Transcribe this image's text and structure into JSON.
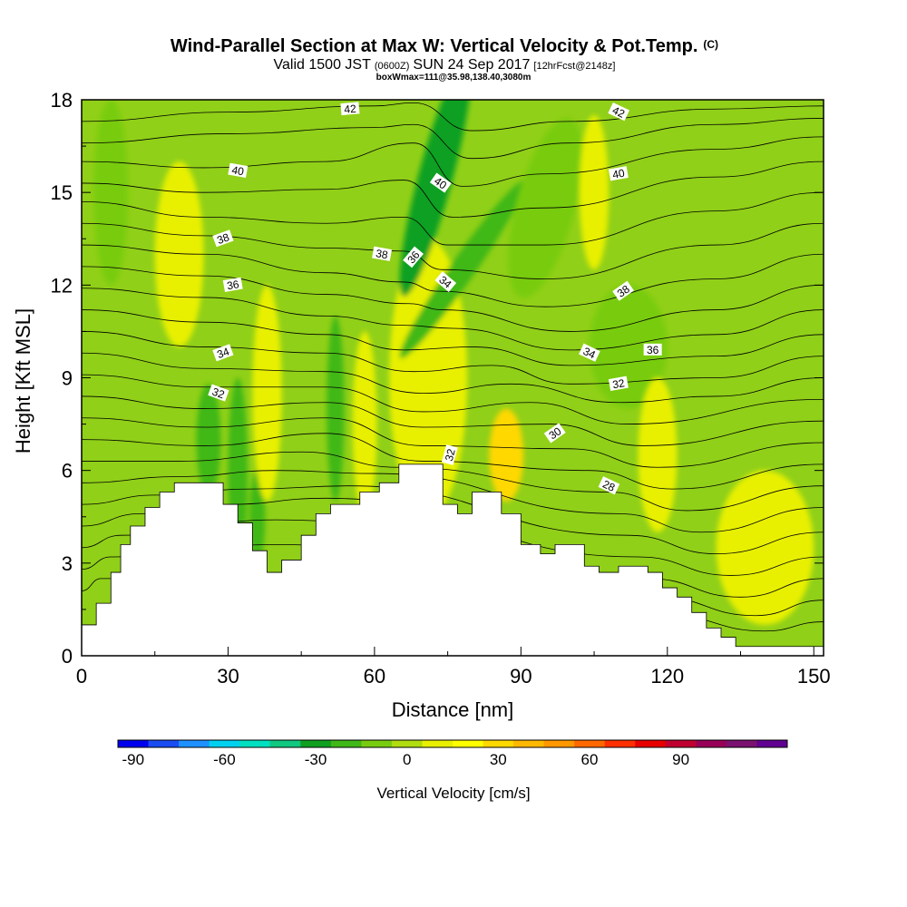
{
  "chart_data": {
    "type": "heatmap",
    "title": "Wind-Parallel Section at Max W: Vertical Velocity & Pot.Temp.",
    "title_mark": "(C)",
    "subtitle_parts": [
      "Valid 1500 JST",
      "(0600Z)",
      "SUN 24 Sep 2017",
      "[12hrFcst@2148z]"
    ],
    "info_line": "boxWmax=111@35.98,138.40,3080m",
    "xlabel": "Distance [nm]",
    "ylabel": "Height [Kft MSL]",
    "xlim": [
      0,
      152
    ],
    "ylim": [
      0,
      18
    ],
    "x_ticks": [
      {
        "value": 0,
        "label": "0"
      },
      {
        "value": 30,
        "label": "30"
      },
      {
        "value": 60,
        "label": "60"
      },
      {
        "value": 90,
        "label": "90"
      },
      {
        "value": 120,
        "label": "120"
      },
      {
        "value": 150,
        "label": "150"
      }
    ],
    "y_ticks": [
      {
        "value": 0,
        "label": "0"
      },
      {
        "value": 3,
        "label": "3"
      },
      {
        "value": 6,
        "label": "6"
      },
      {
        "value": 9,
        "label": "9"
      },
      {
        "value": 12,
        "label": "12"
      },
      {
        "value": 15,
        "label": "15"
      },
      {
        "value": 18,
        "label": "18"
      }
    ],
    "colorbar": {
      "label": "Vertical Velocity [cm/s]",
      "min": -95,
      "step": 10,
      "colors": [
        "#0000ee",
        "#1a4cf2",
        "#1e90ff",
        "#00d0f0",
        "#00e0c0",
        "#10c880",
        "#0fa020",
        "#40b818",
        "#78cc10",
        "#b0dc10",
        "#e8f000",
        "#ffff00",
        "#ffd800",
        "#ffb800",
        "#ff9800",
        "#ff6800",
        "#ff3000",
        "#e80000",
        "#c00030",
        "#980058",
        "#7a1070",
        "#600090"
      ],
      "tick_labels": [
        {
          "value": -90,
          "label": "-90"
        },
        {
          "value": -60,
          "label": "-60"
        },
        {
          "value": -30,
          "label": "-30"
        },
        {
          "value": 0,
          "label": "0"
        },
        {
          "value": 30,
          "label": "30"
        },
        {
          "value": 60,
          "label": "60"
        },
        {
          "value": 90,
          "label": "90"
        }
      ]
    },
    "terrain": [
      [
        0,
        1.0
      ],
      [
        3,
        1.0
      ],
      [
        3,
        1.7
      ],
      [
        6,
        1.7
      ],
      [
        6,
        2.7
      ],
      [
        8,
        2.7
      ],
      [
        8,
        3.6
      ],
      [
        10,
        3.6
      ],
      [
        10,
        4.2
      ],
      [
        13,
        4.2
      ],
      [
        13,
        4.8
      ],
      [
        16,
        4.8
      ],
      [
        16,
        5.3
      ],
      [
        19,
        5.3
      ],
      [
        19,
        5.6
      ],
      [
        29,
        5.6
      ],
      [
        29,
        4.9
      ],
      [
        32,
        4.9
      ],
      [
        32,
        4.3
      ],
      [
        35,
        4.3
      ],
      [
        35,
        3.4
      ],
      [
        38,
        3.4
      ],
      [
        38,
        2.7
      ],
      [
        41,
        2.7
      ],
      [
        41,
        3.1
      ],
      [
        45,
        3.1
      ],
      [
        45,
        3.9
      ],
      [
        48,
        3.9
      ],
      [
        48,
        4.6
      ],
      [
        51,
        4.6
      ],
      [
        51,
        4.9
      ],
      [
        57,
        4.9
      ],
      [
        57,
        5.3
      ],
      [
        61,
        5.3
      ],
      [
        61,
        5.6
      ],
      [
        65,
        5.6
      ],
      [
        65,
        6.2
      ],
      [
        74,
        6.2
      ],
      [
        74,
        4.9
      ],
      [
        77,
        4.9
      ],
      [
        77,
        4.6
      ],
      [
        80,
        4.6
      ],
      [
        80,
        5.3
      ],
      [
        86,
        5.3
      ],
      [
        86,
        4.6
      ],
      [
        90,
        4.6
      ],
      [
        90,
        3.6
      ],
      [
        94,
        3.6
      ],
      [
        94,
        3.3
      ],
      [
        97,
        3.3
      ],
      [
        97,
        3.6
      ],
      [
        103,
        3.6
      ],
      [
        103,
        2.9
      ],
      [
        106,
        2.9
      ],
      [
        106,
        2.7
      ],
      [
        110,
        2.7
      ],
      [
        110,
        2.9
      ],
      [
        116,
        2.9
      ],
      [
        116,
        2.7
      ],
      [
        119,
        2.7
      ],
      [
        119,
        2.2
      ],
      [
        122,
        2.2
      ],
      [
        122,
        1.9
      ],
      [
        125,
        1.9
      ],
      [
        125,
        1.4
      ],
      [
        128,
        1.4
      ],
      [
        128,
        0.9
      ],
      [
        131,
        0.9
      ],
      [
        131,
        0.6
      ],
      [
        134,
        0.6
      ],
      [
        134,
        0.3
      ],
      [
        152,
        0.3
      ]
    ],
    "w_features": [
      {
        "x": 71.5,
        "y": 9.6,
        "rx": 1.8,
        "ry": 2.3,
        "value": 100,
        "rot": 0
      },
      {
        "x": 71.5,
        "y": 9.5,
        "rx": 4.5,
        "ry": 3.5,
        "value": 45,
        "rot": 0
      },
      {
        "x": 71.0,
        "y": 9.0,
        "rx": 8.0,
        "ry": 4.5,
        "value": 12,
        "rot": 0
      },
      {
        "x": 72.5,
        "y": 15.5,
        "rx": 3.5,
        "ry": 4.0,
        "value": -35,
        "rot": 15
      },
      {
        "x": 78.0,
        "y": 12.5,
        "rx": 2.5,
        "ry": 3.5,
        "value": -25,
        "rot": 35
      },
      {
        "x": 95.0,
        "y": 14.5,
        "rx": 6.0,
        "ry": 3.0,
        "value": -15,
        "rot": 15
      },
      {
        "x": 6.0,
        "y": 15.0,
        "rx": 3.5,
        "ry": 3.0,
        "value": -15,
        "rot": 0
      },
      {
        "x": 26.0,
        "y": 7.0,
        "rx": 2.5,
        "ry": 1.8,
        "value": -20,
        "rot": 0
      },
      {
        "x": 32.0,
        "y": 6.0,
        "rx": 2.0,
        "ry": 3.0,
        "value": -22,
        "rot": 0
      },
      {
        "x": 36.0,
        "y": 4.5,
        "rx": 1.6,
        "ry": 1.5,
        "value": -20,
        "rot": 0
      },
      {
        "x": 52.0,
        "y": 8.0,
        "rx": 1.8,
        "ry": 3.0,
        "value": -20,
        "rot": 0
      },
      {
        "x": 87.0,
        "y": 6.5,
        "rx": 3.5,
        "ry": 1.5,
        "value": 25,
        "rot": 0
      },
      {
        "x": 58.0,
        "y": 7.5,
        "rx": 2.5,
        "ry": 3.0,
        "value": 10,
        "rot": 0
      },
      {
        "x": 38.0,
        "y": 8.5,
        "rx": 3.0,
        "ry": 3.5,
        "value": 8,
        "rot": 0
      },
      {
        "x": 105.0,
        "y": 15.0,
        "rx": 3.0,
        "ry": 2.5,
        "value": 10,
        "rot": 0
      },
      {
        "x": 112.0,
        "y": 10.0,
        "rx": 8.0,
        "ry": 2.0,
        "value": -12,
        "rot": 0
      },
      {
        "x": 140.0,
        "y": 3.5,
        "rx": 10.0,
        "ry": 2.5,
        "value": 5,
        "rot": 0
      },
      {
        "x": 20.0,
        "y": 13.0,
        "rx": 5.0,
        "ry": 3.0,
        "value": 6,
        "rot": 0
      },
      {
        "x": 118.0,
        "y": 6.5,
        "rx": 4.0,
        "ry": 2.5,
        "value": 5,
        "rot": 0
      }
    ],
    "isentropes": [
      [
        [
          0,
          17.3
        ],
        [
          30,
          17.6
        ],
        [
          60,
          17.8
        ],
        [
          68,
          17.9
        ],
        [
          80,
          17.0
        ],
        [
          100,
          17.3
        ],
        [
          130,
          17.7
        ],
        [
          152,
          17.8
        ]
      ],
      [
        [
          0,
          16.6
        ],
        [
          30,
          16.9
        ],
        [
          60,
          17.1
        ],
        [
          68,
          17.2
        ],
        [
          80,
          16.1
        ],
        [
          100,
          16.6
        ],
        [
          130,
          17.2
        ],
        [
          152,
          17.4
        ]
      ],
      [
        [
          0,
          16.0
        ],
        [
          25,
          15.8
        ],
        [
          50,
          16.0
        ],
        [
          68,
          16.6
        ],
        [
          78,
          15.2
        ],
        [
          95,
          15.6
        ],
        [
          130,
          16.4
        ],
        [
          152,
          16.8
        ]
      ],
      [
        [
          0,
          15.3
        ],
        [
          25,
          15.0
        ],
        [
          50,
          15.1
        ],
        [
          66,
          15.4
        ],
        [
          76,
          14.2
        ],
        [
          95,
          14.5
        ],
        [
          130,
          15.5
        ],
        [
          152,
          16.0
        ]
      ],
      [
        [
          0,
          14.7
        ],
        [
          25,
          14.2
        ],
        [
          50,
          14.0
        ],
        [
          66,
          14.2
        ],
        [
          75,
          13.3
        ],
        [
          95,
          13.3
        ],
        [
          130,
          14.4
        ],
        [
          152,
          15.0
        ]
      ],
      [
        [
          0,
          14.0
        ],
        [
          25,
          13.6
        ],
        [
          50,
          13.2
        ],
        [
          66,
          13.1
        ],
        [
          74,
          12.5
        ],
        [
          95,
          12.2
        ],
        [
          130,
          13.3
        ],
        [
          152,
          14.0
        ]
      ],
      [
        [
          0,
          13.3
        ],
        [
          25,
          13.0
        ],
        [
          50,
          12.4
        ],
        [
          66,
          12.1
        ],
        [
          73,
          11.8
        ],
        [
          95,
          11.3
        ],
        [
          130,
          12.2
        ],
        [
          152,
          13.0
        ]
      ],
      [
        [
          0,
          12.6
        ],
        [
          25,
          12.3
        ],
        [
          50,
          11.7
        ],
        [
          67,
          11.4
        ],
        [
          74,
          11.2
        ],
        [
          100,
          10.5
        ],
        [
          130,
          11.2
        ],
        [
          152,
          12.0
        ]
      ],
      [
        [
          0,
          11.9
        ],
        [
          25,
          11.6
        ],
        [
          50,
          11.0
        ],
        [
          66,
          10.7
        ],
        [
          76,
          10.6
        ],
        [
          100,
          9.9
        ],
        [
          130,
          10.4
        ],
        [
          152,
          11.2
        ]
      ],
      [
        [
          0,
          11.2
        ],
        [
          25,
          10.8
        ],
        [
          50,
          10.4
        ],
        [
          66,
          9.9
        ],
        [
          80,
          10.0
        ],
        [
          100,
          9.4
        ],
        [
          130,
          9.7
        ],
        [
          152,
          10.4
        ]
      ],
      [
        [
          0,
          10.5
        ],
        [
          25,
          10.0
        ],
        [
          50,
          9.8
        ],
        [
          68,
          9.2
        ],
        [
          84,
          9.4
        ],
        [
          100,
          8.8
        ],
        [
          130,
          9.0
        ],
        [
          152,
          9.7
        ]
      ],
      [
        [
          0,
          9.8
        ],
        [
          25,
          9.3
        ],
        [
          50,
          9.2
        ],
        [
          70,
          8.5
        ],
        [
          88,
          8.8
        ],
        [
          110,
          8.2
        ],
        [
          130,
          8.4
        ],
        [
          152,
          9.0
        ]
      ],
      [
        [
          0,
          9.1
        ],
        [
          25,
          8.7
        ],
        [
          50,
          8.7
        ],
        [
          70,
          7.9
        ],
        [
          92,
          8.2
        ],
        [
          112,
          7.5
        ],
        [
          152,
          8.3
        ]
      ],
      [
        [
          0,
          8.4
        ],
        [
          25,
          8.0
        ],
        [
          50,
          8.2
        ],
        [
          70,
          7.4
        ],
        [
          96,
          7.5
        ],
        [
          115,
          6.8
        ],
        [
          152,
          7.6
        ]
      ],
      [
        [
          0,
          7.7
        ],
        [
          25,
          7.4
        ],
        [
          50,
          7.7
        ],
        [
          70,
          6.8
        ],
        [
          100,
          6.7
        ],
        [
          118,
          6.1
        ],
        [
          152,
          6.9
        ]
      ],
      [
        [
          0,
          7.0
        ],
        [
          25,
          6.8
        ],
        [
          50,
          7.2
        ],
        [
          70,
          6.3
        ],
        [
          104,
          6.0
        ],
        [
          121,
          5.4
        ],
        [
          152,
          6.2
        ]
      ],
      [
        [
          0,
          6.3
        ],
        [
          20,
          6.3
        ],
        [
          45,
          6.6
        ],
        [
          65,
          6.1
        ],
        [
          108,
          5.3
        ],
        [
          124,
          4.7
        ],
        [
          152,
          5.5
        ]
      ],
      [
        [
          0,
          5.6
        ],
        [
          20,
          5.8
        ],
        [
          40,
          6.0
        ],
        [
          60,
          5.9
        ],
        [
          110,
          4.6
        ],
        [
          127,
          4.0
        ],
        [
          152,
          4.8
        ]
      ],
      [
        [
          0,
          4.9
        ],
        [
          15,
          5.2
        ],
        [
          35,
          5.4
        ],
        [
          55,
          5.5
        ],
        [
          112,
          3.9
        ],
        [
          130,
          3.3
        ],
        [
          152,
          4.0
        ]
      ],
      [
        [
          0,
          4.2
        ],
        [
          12,
          4.6
        ],
        [
          30,
          4.9
        ],
        [
          50,
          5.1
        ],
        [
          114,
          3.2
        ],
        [
          133,
          2.6
        ],
        [
          152,
          3.2
        ]
      ],
      [
        [
          0,
          3.5
        ],
        [
          8,
          3.9
        ],
        [
          40,
          4.4
        ],
        [
          116,
          2.5
        ],
        [
          135,
          1.9
        ],
        [
          152,
          2.5
        ]
      ],
      [
        [
          0,
          2.8
        ],
        [
          6,
          3.2
        ],
        [
          40,
          3.6
        ],
        [
          118,
          1.9
        ],
        [
          138,
          1.3
        ],
        [
          152,
          1.8
        ]
      ],
      [
        [
          0,
          2.1
        ],
        [
          4,
          2.5
        ],
        [
          120,
          1.3
        ],
        [
          140,
          0.8
        ],
        [
          152,
          1.1
        ]
      ]
    ],
    "contour_labels": [
      {
        "x": 55,
        "y": 17.7,
        "text": "42",
        "rot": -5
      },
      {
        "x": 110,
        "y": 17.6,
        "text": "42",
        "rot": 25
      },
      {
        "x": 32,
        "y": 15.7,
        "text": "40",
        "rot": 10
      },
      {
        "x": 73.5,
        "y": 15.3,
        "text": "40",
        "rot": 35
      },
      {
        "x": 110,
        "y": 15.6,
        "text": "40",
        "rot": -10
      },
      {
        "x": 29,
        "y": 13.5,
        "text": "38",
        "rot": -20
      },
      {
        "x": 61.5,
        "y": 13.0,
        "text": "38",
        "rot": 10
      },
      {
        "x": 68,
        "y": 12.9,
        "text": "36",
        "rot": -50
      },
      {
        "x": 74.5,
        "y": 12.1,
        "text": "34",
        "rot": 40
      },
      {
        "x": 31,
        "y": 12.0,
        "text": "36",
        "rot": -10
      },
      {
        "x": 111,
        "y": 11.8,
        "text": "38",
        "rot": -35
      },
      {
        "x": 29,
        "y": 9.8,
        "text": "34",
        "rot": -20
      },
      {
        "x": 104,
        "y": 9.8,
        "text": "34",
        "rot": 25
      },
      {
        "x": 117,
        "y": 9.9,
        "text": "36",
        "rot": 0
      },
      {
        "x": 28,
        "y": 8.5,
        "text": "32",
        "rot": 20
      },
      {
        "x": 110,
        "y": 8.8,
        "text": "32",
        "rot": -10
      },
      {
        "x": 97,
        "y": 7.2,
        "text": "30",
        "rot": -35
      },
      {
        "x": 75.5,
        "y": 6.5,
        "text": "32",
        "rot": -75
      },
      {
        "x": 108,
        "y": 5.5,
        "text": "28",
        "rot": 25
      }
    ]
  }
}
